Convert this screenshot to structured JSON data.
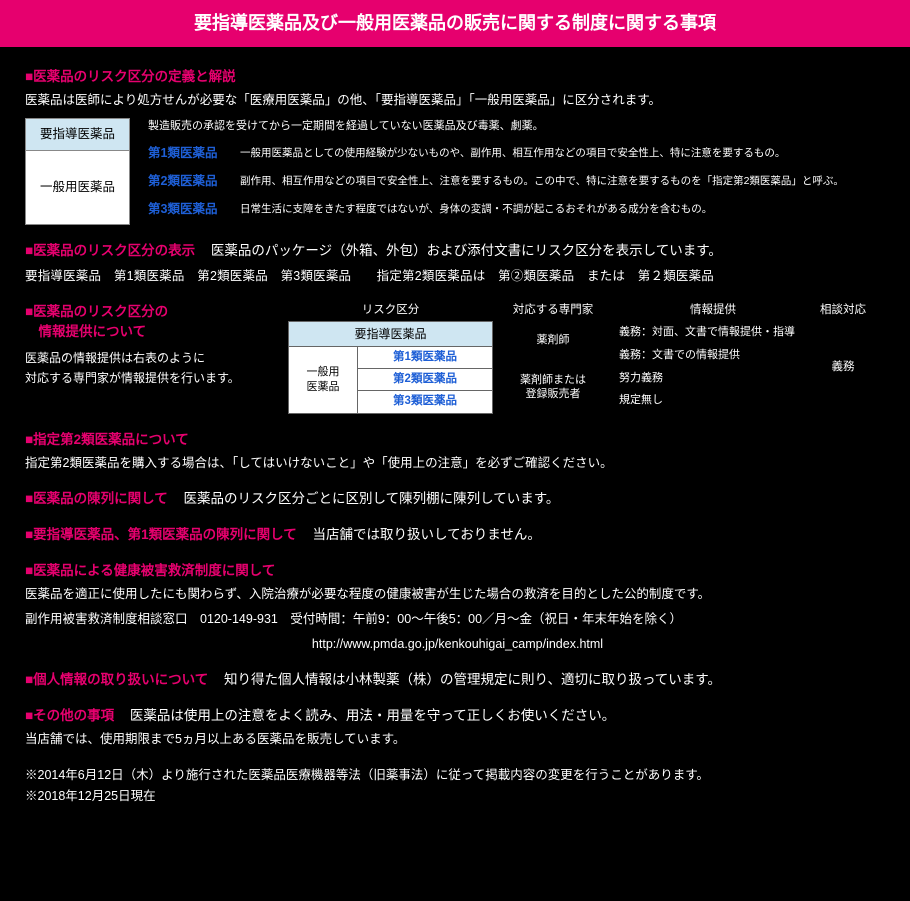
{
  "colors": {
    "accent": "#e6006e",
    "link_blue": "#1e5fd6",
    "bg": "#000000",
    "text": "#ffffff",
    "table_header_bg": "#cfe6f2",
    "table_cell_bg": "#ffffff"
  },
  "title": "要指導医薬品及び一般用医薬品の販売に関する制度に関する事項",
  "s1": {
    "heading": "■医薬品のリスク区分の定義と解説",
    "intro": "医薬品は医師により処方せんが必要な「医療用医薬品」の他、「要指導医薬品」「一般用医薬品」に区分されます。",
    "cell_yoshido": "要指導医薬品",
    "cell_ippan": "一般用医薬品",
    "yoshido_desc": "製造販売の承認を受けてから一定期間を経過していない医薬品及び毒薬、劇薬。",
    "rows": [
      {
        "label": "第1類医薬品",
        "desc": "一般用医薬品としての使用経験が少ないものや、副作用、相互作用などの項目で安全性上、特に注意を要するもの。"
      },
      {
        "label": "第2類医薬品",
        "desc": "副作用、相互作用などの項目で安全性上、注意を要するもの。この中で、特に注意を要するものを「指定第2類医薬品」と呼ぶ。"
      },
      {
        "label": "第3類医薬品",
        "desc": "日常生活に支障をきたす程度ではないが、身体の変調・不調が起こるおそれがある成分を含むもの。"
      }
    ]
  },
  "s2": {
    "heading": "■医薬品のリスク区分の表示",
    "inline": "医薬品のパッケージ（外箱、外包）および添付文書にリスク区分を表示しています。",
    "row": "要指導医薬品　第1類医薬品　第2類医薬品　第3類医薬品　　指定第2類医薬品は　第②類医薬品　または　第２類医薬品"
  },
  "s3": {
    "heading_l1": "■医薬品のリスク区分の",
    "heading_l2": "　情報提供について",
    "body_l1": "医薬品の情報提供は右表のように",
    "body_l2": "対応する専門家が情報提供を行います。",
    "th_risk": "リスク区分",
    "th_expert": "対応する専門家",
    "th_prov": "情報提供",
    "th_resp": "相談対応",
    "risk_top": "要指導医薬品",
    "risk_ippan": "一般用\n医薬品",
    "risk_c1": "第1類医薬品",
    "risk_c2": "第2類医薬品",
    "risk_c3": "第3類医薬品",
    "expert1": "薬剤師",
    "expert2": "薬剤師または\n登録販売者",
    "prov1": "義務：対面、文書で情報提供・指導",
    "prov2": "義務：文書での情報提供",
    "prov3": "努力義務",
    "prov4": "規定無し",
    "resp": "義務"
  },
  "s4": {
    "heading": "■指定第2類医薬品について",
    "body": "指定第2類医薬品を購入する場合は、「してはいけないこと」や「使用上の注意」を必ずご確認ください。"
  },
  "s5": {
    "heading": "■医薬品の陳列に関して",
    "inline": "医薬品のリスク区分ごとに区別して陳列棚に陳列しています。"
  },
  "s6": {
    "heading": "■要指導医薬品、第1類医薬品の陳列に関して",
    "inline": "当店舗では取り扱いしておりません。"
  },
  "s7": {
    "heading": "■医薬品による健康被害救済制度に関して",
    "l1": "医薬品を適正に使用したにも関わらず、入院治療が必要な程度の健康被害が生じた場合の救済を目的とした公的制度です。",
    "l2": "副作用被害救済制度相談窓口　0120-149-931　受付時間：午前9：00～午後5：00／月～金（祝日・年末年始を除く）",
    "url": "http://www.pmda.go.jp/kenkouhigai_camp/index.html"
  },
  "s8": {
    "heading": "■個人情報の取り扱いについて",
    "inline": "知り得た個人情報は小林製薬（株）の管理規定に則り、適切に取り扱っています。"
  },
  "s9": {
    "heading": "■その他の事項",
    "inline": "医薬品は使用上の注意をよく読み、用法・用量を守って正しくお使いください。",
    "l2": "当店舗では、使用期限まで5ヵ月以上ある医薬品を販売しています。"
  },
  "footnote": {
    "l1": "※2014年6月12日（木）より施行された医薬品医療機器等法（旧薬事法）に従って掲載内容の変更を行うことがあります。",
    "l2": "※2018年12月25日現在"
  }
}
